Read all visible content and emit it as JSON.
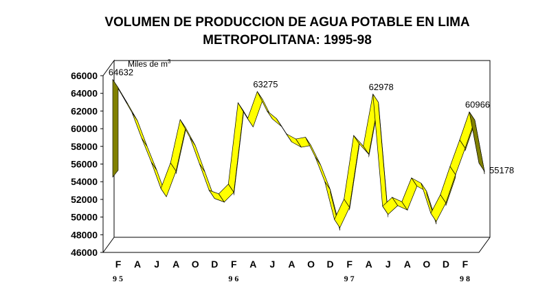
{
  "chart_data": {
    "type": "line",
    "style": "3d-ribbon",
    "title_line1": "VOLUMEN DE PRODUCCION DE AGUA POTABLE EN LIMA",
    "title_line2": "METROPOLITANA: 1995-98",
    "ylabel": "Miles de m",
    "ylabel_superscript": "3",
    "ylim": [
      46000,
      66000
    ],
    "yticks": [
      "66000",
      "64000",
      "62000",
      "60000",
      "58000",
      "56000",
      "54000",
      "52000",
      "50000",
      "48000",
      "46000"
    ],
    "xtick_labels": [
      "F",
      "A",
      "J",
      "A",
      "O",
      "D",
      "F",
      "A",
      "J",
      "A",
      "O",
      "D",
      "F",
      "A",
      "J",
      "A",
      "O",
      "D",
      "F"
    ],
    "year_labels": [
      {
        "text": "95",
        "month": 0
      },
      {
        "text": "96",
        "month": 12
      },
      {
        "text": "97",
        "month": 24
      },
      {
        "text": "98",
        "month": 36
      }
    ],
    "series": [
      {
        "values": [
          64632,
          62800,
          60900,
          58000,
          55300,
          52300,
          55200,
          60100,
          58100,
          55100,
          52100,
          51700,
          52800,
          62000,
          60200,
          63275,
          61100,
          60200,
          58500,
          57900,
          58100,
          55900,
          53100,
          48800,
          51100,
          58300,
          57100,
          62978,
          50300,
          51300,
          50800,
          53500,
          52900,
          49500,
          51600,
          54800,
          57800,
          60966,
          55178
        ]
      }
    ],
    "data_labels": [
      {
        "index": 0,
        "text": "64632"
      },
      {
        "index": 15,
        "text": "63275"
      },
      {
        "index": 27,
        "text": "62978"
      },
      {
        "index": 37,
        "text": "60966"
      },
      {
        "index": 38,
        "text": "55178"
      }
    ],
    "colors": {
      "ribbon_top": "#ffff00",
      "ribbon_side": "#808000",
      "outline": "#000000",
      "axes": "#000000"
    },
    "grid": false,
    "legend": "none"
  }
}
